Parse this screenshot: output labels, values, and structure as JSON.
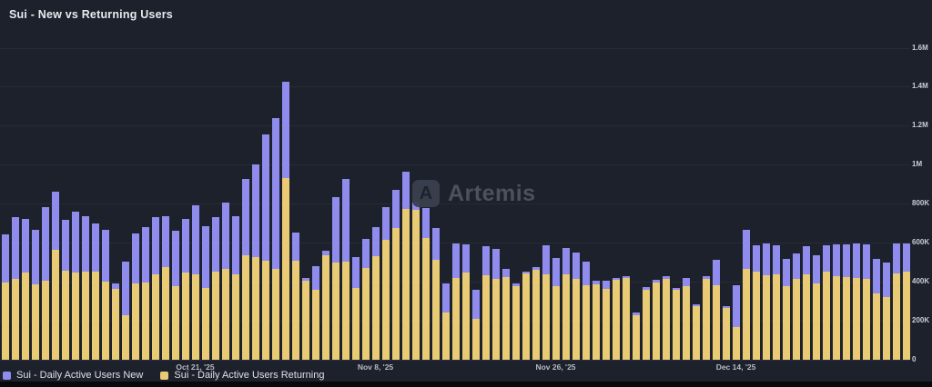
{
  "header": {
    "title": "Sui - New vs Returning Users"
  },
  "watermark": {
    "text": "Artemis",
    "icon": "artemis-logo"
  },
  "legend": [
    {
      "label": "Sui - Daily Active Users New",
      "color": "#8f8cee"
    },
    {
      "label": "Sui - Daily Active Users Returning",
      "color": "#e8cb74"
    }
  ],
  "colors": {
    "background": "#1d212b",
    "new_users": "#8f8cee",
    "returning_users": "#e8cb74",
    "gridline": "#272b36",
    "axis_label": "#bfc3cc",
    "title_text": "#e8eaee",
    "watermark_text": "#4c515d"
  },
  "chart_data": {
    "type": "bar",
    "stacked": true,
    "title": "Sui - New vs Returning Users",
    "xlabel": "",
    "ylabel": "",
    "ylim": [
      0,
      1600000
    ],
    "grid": true,
    "y_axis_side": "right",
    "legend_position": "bottom-left",
    "y_ticks": [
      {
        "value": 0,
        "label": "0"
      },
      {
        "value": 200000,
        "label": "200K"
      },
      {
        "value": 400000,
        "label": "400K"
      },
      {
        "value": 600000,
        "label": "600K"
      },
      {
        "value": 800000,
        "label": "800K"
      },
      {
        "value": 1000000,
        "label": "1M"
      },
      {
        "value": 1200000,
        "label": "1.2M"
      },
      {
        "value": 1400000,
        "label": "1.4M"
      },
      {
        "value": 1600000,
        "label": "1.6M"
      }
    ],
    "x_ticks": [
      {
        "index": 19,
        "label": "Oct 21, '25"
      },
      {
        "index": 37,
        "label": "Nov 8, '25"
      },
      {
        "index": 55,
        "label": "Nov 26, '25"
      },
      {
        "index": 73,
        "label": "Dec 14, '25"
      }
    ],
    "series": [
      {
        "name": "Sui - Daily Active Users New",
        "color": "#8f8cee",
        "values": [
          250000,
          318000,
          274000,
          279000,
          380000,
          295000,
          263000,
          315000,
          282000,
          248000,
          268000,
          30000,
          275000,
          256000,
          285000,
          290000,
          260000,
          287000,
          279000,
          352000,
          315000,
          280000,
          340000,
          300000,
          390000,
          475000,
          645000,
          775000,
          495000,
          140000,
          18000,
          122000,
          25000,
          335000,
          420000,
          160000,
          150000,
          146000,
          168000,
          195000,
          193000,
          43000,
          154000,
          165000,
          151000,
          178000,
          145000,
          151000,
          148000,
          155000,
          39000,
          12000,
          11000,
          11000,
          149000,
          145000,
          137000,
          136000,
          121000,
          18000,
          42000,
          11000,
          10000,
          14000,
          12000,
          13000,
          13000,
          9000,
          42000,
          10000,
          15000,
          129000,
          9000,
          216000,
          196000,
          135000,
          166000,
          150000,
          144000,
          133000,
          142000,
          144000,
          136000,
          163000,
          166000,
          178000,
          178000,
          178000,
          178000,
          155000,
          147000
        ]
      },
      {
        "name": "Sui - Daily Active Users Returning",
        "color": "#e8cb74",
        "values": [
          395000,
          414000,
          447000,
          388000,
          403000,
          565000,
          455000,
          445000,
          454000,
          450000,
          400000,
          362000,
          228000,
          390000,
          395000,
          440000,
          476000,
          375000,
          445000,
          439000,
          368000,
          450000,
          468000,
          437000,
          535000,
          525000,
          510000,
          465000,
          930000,
          510000,
          403000,
          357000,
          535000,
          500000,
          505000,
          368000,
          470000,
          532000,
          615000,
          676000,
          771000,
          769000,
          626000,
          512000,
          241000,
          419000,
          447000,
          209000,
          433000,
          414000,
          426000,
          378000,
          442000,
          462000,
          437000,
          377000,
          437000,
          414000,
          383000,
          388000,
          364000,
          408000,
          419000,
          229000,
          360000,
          398000,
          414000,
          360000,
          377000,
          274000,
          414000,
          383000,
          267000,
          167000,
          468000,
          450000,
          431000,
          436000,
          375000,
          414000,
          439000,
          391000,
          453000,
          429000,
          426000,
          419000,
          414000,
          341000,
          321000,
          442000,
          450000
        ]
      }
    ]
  }
}
